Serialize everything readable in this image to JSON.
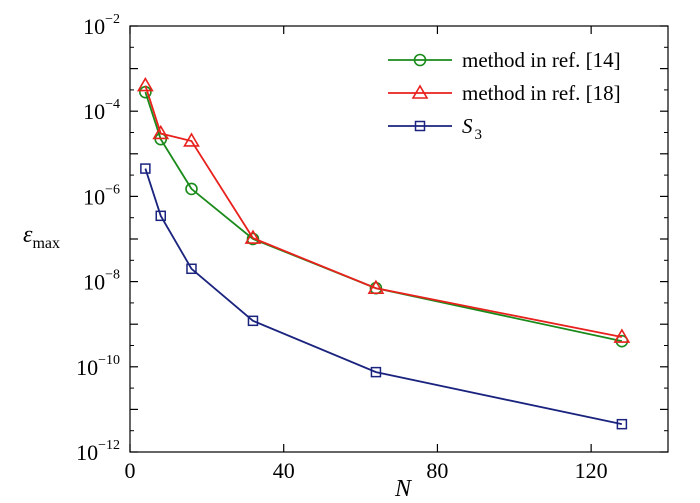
{
  "chart_data": {
    "type": "line",
    "y_scale": "log",
    "xlim": [
      0,
      140
    ],
    "ylim": [
      1e-12,
      0.01
    ],
    "grid": false,
    "legend_position": "top-right",
    "xlabel": "N",
    "ylabel": {
      "main": "ε",
      "subscript": "max"
    },
    "x_ticks": [
      {
        "value": 0,
        "label": "0"
      },
      {
        "value": 40,
        "label": "40"
      },
      {
        "value": 80,
        "label": "80"
      },
      {
        "value": 120,
        "label": "120"
      }
    ],
    "y_ticks": [
      {
        "value": 1e-12,
        "base": "10",
        "exp": "−12"
      },
      {
        "value": 1e-10,
        "base": "10",
        "exp": "−10"
      },
      {
        "value": 1e-08,
        "base": "10",
        "exp": "−8"
      },
      {
        "value": 1e-06,
        "base": "10",
        "exp": "−6"
      },
      {
        "value": 0.0001,
        "base": "10",
        "exp": "−4"
      },
      {
        "value": 0.01,
        "base": "10",
        "exp": "−2"
      }
    ],
    "series": [
      {
        "name": "method in ref. [14]",
        "color": "#1a8a1a",
        "marker": "circle",
        "x": [
          4,
          8,
          16,
          32,
          64,
          128
        ],
        "y": [
          0.00028,
          2.2e-05,
          1.5e-06,
          1e-07,
          7e-09,
          4e-10
        ]
      },
      {
        "name": "method in ref. [18]",
        "color": "#e8211d",
        "marker": "triangle",
        "x": [
          4,
          8,
          16,
          32,
          64,
          128
        ],
        "y": [
          0.0004,
          3e-05,
          2e-05,
          1.05e-07,
          7e-09,
          5e-10
        ]
      },
      {
        "name": "S",
        "name_subscript": "3",
        "color": "#1a237e",
        "marker": "square",
        "x": [
          4,
          8,
          16,
          32,
          64,
          128
        ],
        "y": [
          4.5e-06,
          3.5e-07,
          2e-08,
          1.2e-09,
          7.5e-11,
          4.5e-12
        ]
      }
    ]
  }
}
